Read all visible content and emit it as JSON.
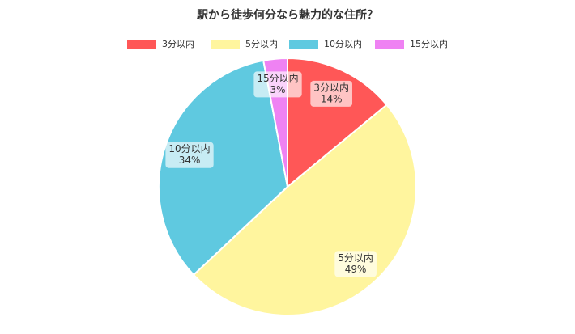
{
  "chart_data": {
    "type": "pie",
    "title": "駅から徒歩何分なら魅力的な住所？",
    "categories": [
      "3分以内",
      "5分以内",
      "10分以内",
      "15分以内"
    ],
    "values": [
      14,
      49,
      34,
      3
    ],
    "value_labels": [
      "14%",
      "49%",
      "34%",
      "3%"
    ],
    "colors": [
      "#ff5757",
      "#fff59e",
      "#5fc9e0",
      "#ef82f3"
    ],
    "legend": "top"
  }
}
